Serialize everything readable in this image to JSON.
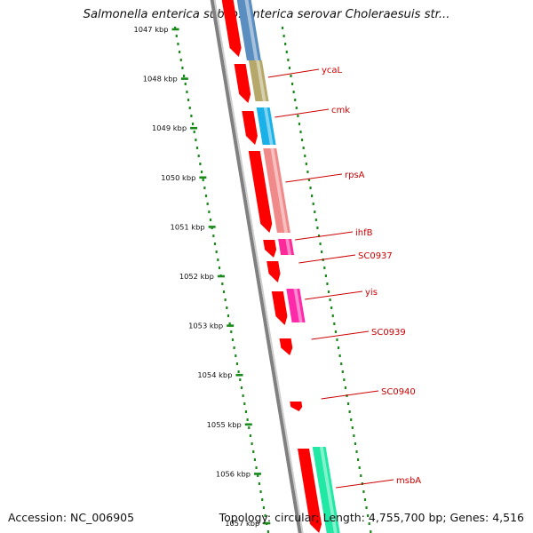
{
  "title": "Salmonella enterica subsp. enterica serovar Choleraesuis str...",
  "footer": {
    "accession": "Accession: NC_006905",
    "topology": "Topology: circular; Length: 4,755,700 bp; Genes: 4,516"
  },
  "ticks": [
    "1047 kbp",
    "1048 kbp",
    "1049 kbp",
    "1050 kbp",
    "1051 kbp",
    "1052 kbp",
    "1053 kbp",
    "1054 kbp",
    "1055 kbp",
    "1056 kbp",
    "1057 kbp"
  ],
  "genes": [
    {
      "label": "ycaL",
      "color": "#b5a86a"
    },
    {
      "label": "cmk",
      "color": "#1ab0e8"
    },
    {
      "label": "rpsA",
      "color": "#f08a8a"
    },
    {
      "label": "ihfB",
      "color": "#ff2a9a"
    },
    {
      "label": "SC0937",
      "color": "#ff0000"
    },
    {
      "label": "yis",
      "color": "#ff2aaa"
    },
    {
      "label": "SC0939",
      "color": "#ff0000"
    },
    {
      "label": "SC0940",
      "color": "#ff0000"
    },
    {
      "label": "msbA",
      "color": "#22e8a6"
    }
  ],
  "colors": {
    "cds": "#ff0000",
    "backbone": "#808080",
    "tick_dots": "#1a8a1a",
    "label_text": "#cc0000",
    "top_feature": "#5b8ec0"
  }
}
